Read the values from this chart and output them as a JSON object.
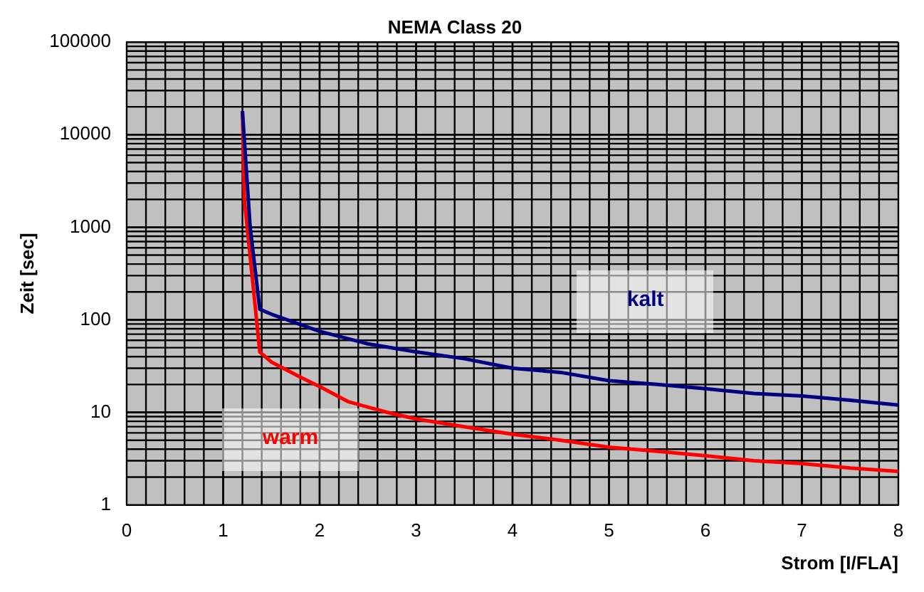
{
  "chart_data": {
    "type": "line",
    "title": "NEMA Class 20",
    "xlabel": "Strom [I/FLA]",
    "ylabel": "Zeit [sec]",
    "series": [
      {
        "name": "kalt",
        "color": "#000080",
        "x": [
          1.2,
          1.28,
          1.38,
          1.5,
          2,
          2.5,
          3,
          3.5,
          4,
          4.5,
          5,
          5.5,
          6,
          6.5,
          7,
          7.5,
          8
        ],
        "values": [
          18000,
          1000,
          130,
          115,
          75,
          55,
          45,
          38,
          30,
          27,
          22,
          20,
          18,
          16,
          15,
          13.5,
          12
        ]
      },
      {
        "name": "warm",
        "color": "#ff0000",
        "x": [
          1.2,
          1.22,
          1.3,
          1.38,
          1.5,
          1.8,
          2,
          2.3,
          2.7,
          3,
          3.5,
          4,
          4.5,
          5,
          5.5,
          6,
          6.5,
          7,
          7.5,
          8
        ],
        "values": [
          18000,
          2000,
          300,
          45,
          35,
          24,
          19,
          13,
          10,
          8.5,
          7,
          5.8,
          5,
          4.2,
          3.8,
          3.4,
          3,
          2.8,
          2.5,
          2.3
        ]
      }
    ],
    "xlim": [
      0,
      8
    ],
    "xticks": [
      0,
      1,
      2,
      3,
      4,
      5,
      6,
      7,
      8
    ],
    "ylim": [
      1,
      100000
    ],
    "yticks": [
      1,
      10,
      100,
      1000,
      10000,
      100000
    ],
    "log": "y",
    "grid": true,
    "legend": false,
    "marker": "none",
    "line_style": "solid"
  }
}
